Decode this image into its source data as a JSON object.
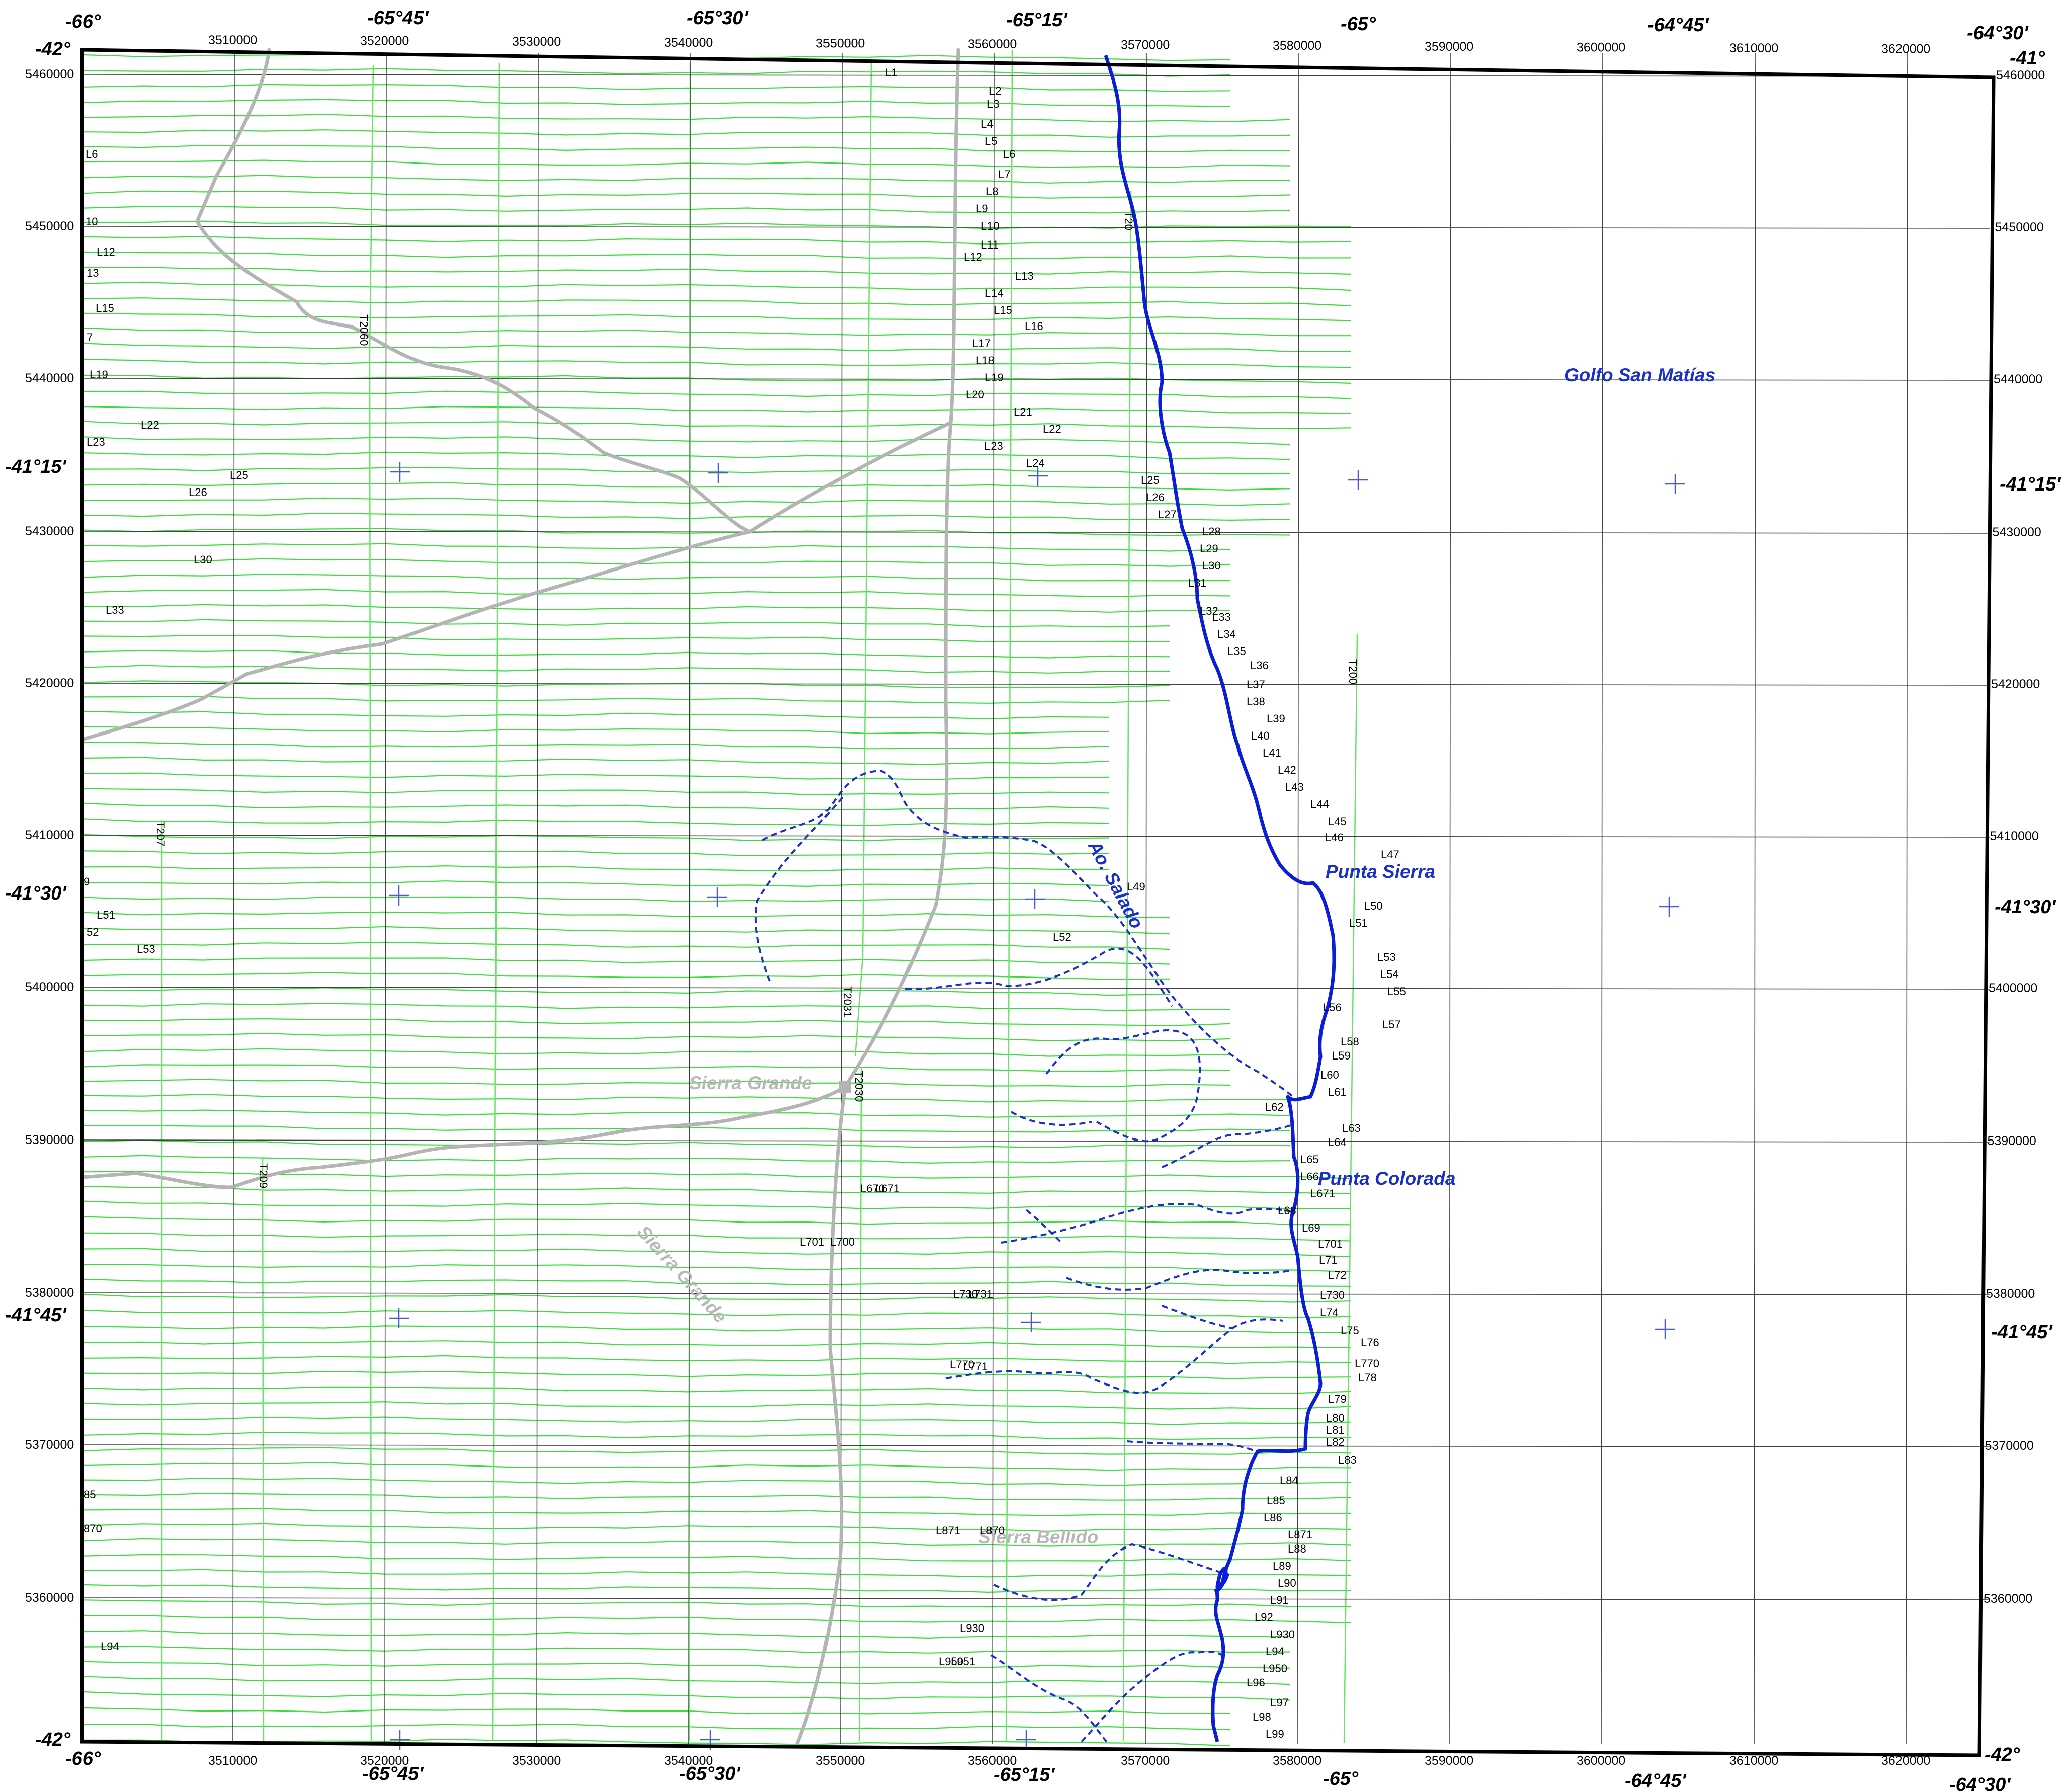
{
  "map": {
    "colors": {
      "frame": "#000000",
      "grid": "#222222",
      "flight_line": "#3ddc3d",
      "tie_line": "#6be06b",
      "coast": "#0a1ed8",
      "stream": "#1a2fd0",
      "road": "#b4b4b4",
      "cross": "#4b5bd6"
    },
    "top_geo_labels": [
      "-66°",
      "-65°45'",
      "-65°30'",
      "-65°15'",
      "-65°",
      "-64°45'",
      "-64°30'"
    ],
    "bottom_geo_labels": [
      "-66°",
      "-65°45'",
      "-65°30'",
      "-65°15'",
      "-65°",
      "-64°45'",
      "-64°30'"
    ],
    "corner_labels": {
      "top_left": "-42°",
      "top_right": "-41°",
      "bottom_left": "-42°",
      "bottom_right": "-42°"
    },
    "left_lat_labels": [
      "-41°15'",
      "-41°30'",
      "-41°45'"
    ],
    "right_lat_labels": [
      "-41°15'",
      "-41°30'",
      "-41°45'"
    ],
    "eastings": [
      "3510000",
      "3520000",
      "3530000",
      "3540000",
      "3550000",
      "3560000",
      "3570000",
      "3580000",
      "3590000",
      "3600000",
      "3610000",
      "3620000"
    ],
    "northings": [
      "5460000",
      "5450000",
      "5440000",
      "5430000",
      "5420000",
      "5410000",
      "5400000",
      "5390000",
      "5380000",
      "5370000",
      "5360000"
    ],
    "places": {
      "golfo": "Golfo San Matías",
      "punta_sierra": "Punta Sierra",
      "punta_colorada": "Punta Colorada",
      "ao_salado": "Ao. Salado",
      "sierra_grande_town": "Sierra Grande",
      "sierra_grande_range": "Sierra Grande",
      "sierra_bellido": "Sierra Bellido"
    },
    "tie_lines": [
      "T2060",
      "T207",
      "T209",
      "T2031",
      "T2030",
      "T200",
      "T20"
    ],
    "line_labels": [
      "L1",
      "L2",
      "L3",
      "L4",
      "L5",
      "L6",
      "L7",
      "L8",
      "L9",
      "L10",
      "L11",
      "L12",
      "L13",
      "L14",
      "L15",
      "L16",
      "L17",
      "L18",
      "L19",
      "L20",
      "L21",
      "L22",
      "L23",
      "L24",
      "L25",
      "L26",
      "L27",
      "L28",
      "L29",
      "L30",
      "L31",
      "L32",
      "L33",
      "L34",
      "L35",
      "L36",
      "L37",
      "L38",
      "L39",
      "L40",
      "L41",
      "L42",
      "L43",
      "L44",
      "L45",
      "L46",
      "L47",
      "L49",
      "L50",
      "L51",
      "L52",
      "L53",
      "L54",
      "L55",
      "L56",
      "L57",
      "L58",
      "L59",
      "L60",
      "L61",
      "L62",
      "L63",
      "L64",
      "L65",
      "L66",
      "L671",
      "L68",
      "L69",
      "L701",
      "L71",
      "L72",
      "L730",
      "L74",
      "L75",
      "L76",
      "L770",
      "L78",
      "L79",
      "L80",
      "L81",
      "L82",
      "L83",
      "L84",
      "L85",
      "L86",
      "L871",
      "L88",
      "L89",
      "L90",
      "L91",
      "L92",
      "L930",
      "L94",
      "L950",
      "L96",
      "L97",
      "L98",
      "L99",
      "L6",
      "10",
      "L12",
      "13",
      "L15",
      "7",
      "L19",
      "L22",
      "L23",
      "L25",
      "L26",
      "L30",
      "L33",
      "9",
      "L51",
      "52",
      "L53",
      "85",
      "870",
      "L94",
      "L670",
      "L671",
      "L701",
      "L700",
      "L730",
      "L731",
      "L770",
      "L771",
      "L871",
      "L870",
      "L930",
      "L950",
      "L951",
      "L52",
      "L49"
    ]
  }
}
